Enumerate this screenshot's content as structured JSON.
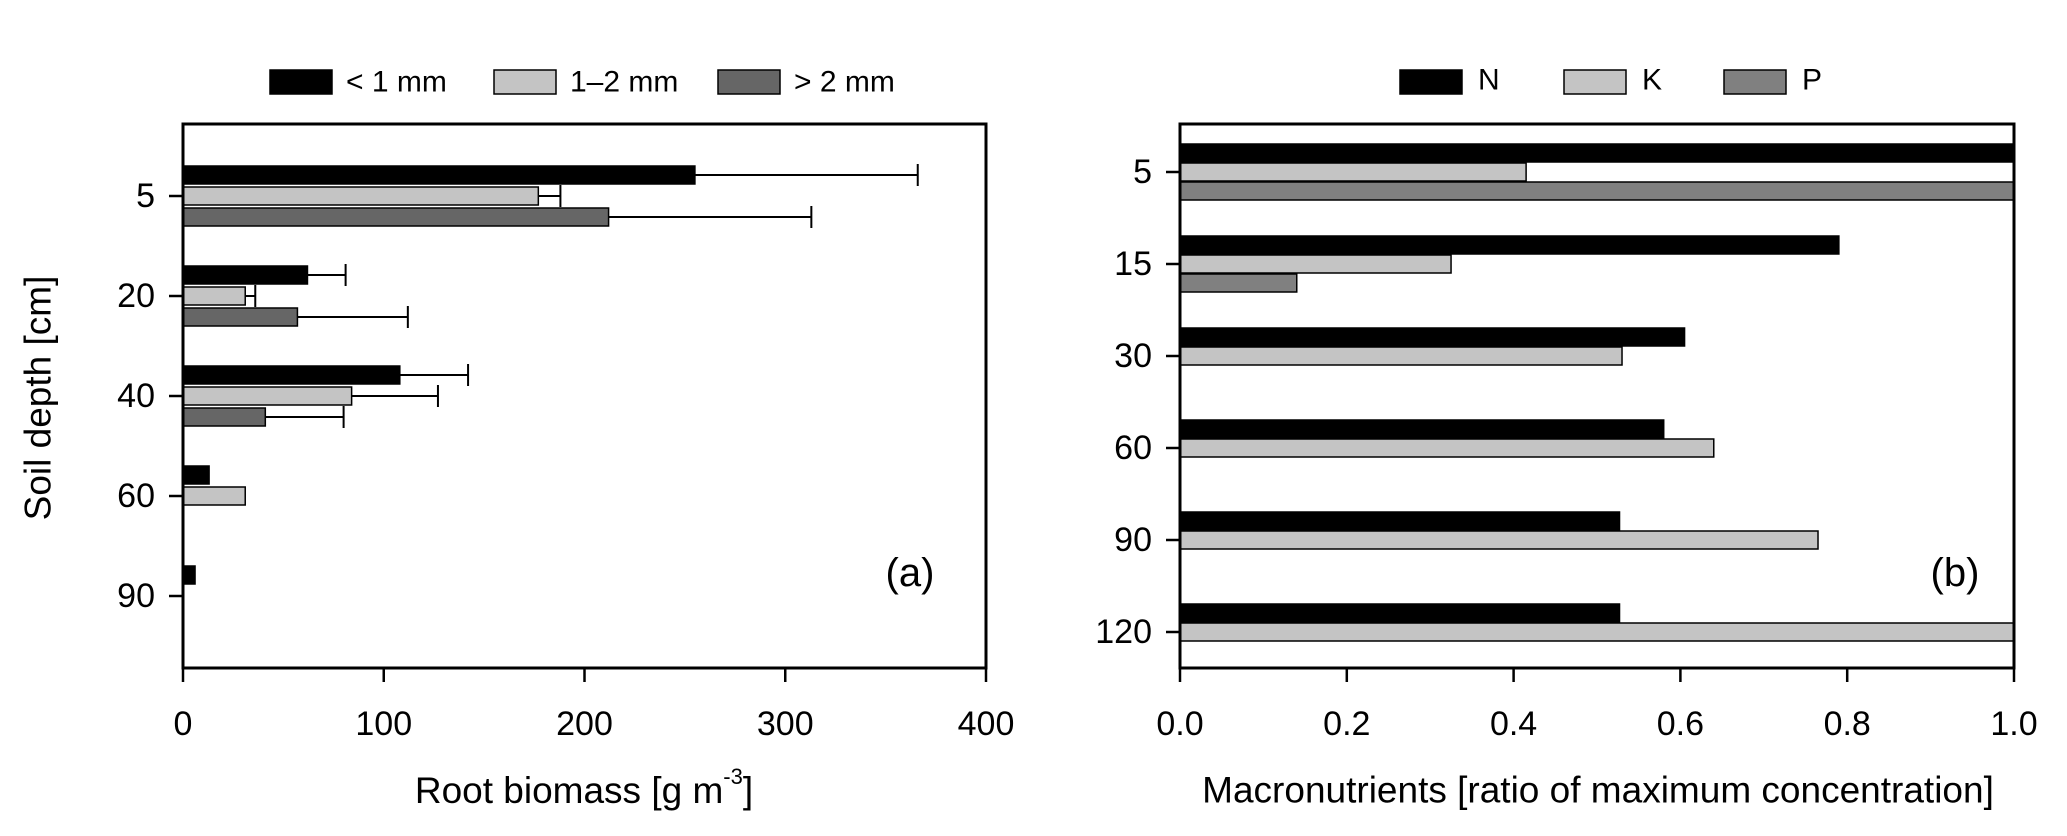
{
  "chart_data": [
    {
      "type": "bar",
      "orientation": "horizontal",
      "panel_label": "(a)",
      "categories": [
        "5",
        "20",
        "40",
        "60",
        "90"
      ],
      "ylabel": "Soil depth [cm]",
      "xlabel_main": "Root biomass [g m",
      "xlabel_sup": "-3",
      "xlabel_tail": "]",
      "xlim": [
        0,
        400
      ],
      "xticks": [
        "0",
        "100",
        "200",
        "300",
        "400"
      ],
      "tick_values": [
        0,
        100,
        200,
        300,
        400
      ],
      "legend_position": "top",
      "series": [
        {
          "name": "< 1 mm",
          "color": "#000000",
          "values": [
            255,
            62,
            108,
            13,
            6
          ],
          "errors": [
            111,
            19,
            34,
            null,
            null
          ]
        },
        {
          "name": "1–2 mm",
          "color": "#c4c4c4",
          "values": [
            177,
            31,
            84,
            31,
            null
          ],
          "errors": [
            11,
            5,
            43,
            null,
            null
          ]
        },
        {
          "name": "> 2 mm",
          "color": "#666666",
          "values": [
            212,
            57,
            41,
            null,
            null
          ],
          "errors": [
            101,
            55,
            39,
            null,
            null
          ]
        }
      ]
    },
    {
      "type": "bar",
      "orientation": "horizontal",
      "panel_label": "(b)",
      "categories": [
        "5",
        "15",
        "30",
        "60",
        "90",
        "120"
      ],
      "xlabel": "Macronutrients [ratio of maximum concentration]",
      "xlim": [
        0,
        1
      ],
      "xticks": [
        "0.0",
        "0.2",
        "0.4",
        "0.6",
        "0.8",
        "1.0"
      ],
      "tick_values": [
        0,
        0.2,
        0.4,
        0.6,
        0.8,
        1.0
      ],
      "legend_position": "top",
      "series": [
        {
          "name": "N",
          "color": "#000000",
          "values": [
            1.0,
            0.79,
            0.605,
            0.58,
            0.527,
            0.527
          ]
        },
        {
          "name": "K",
          "color": "#c4c4c4",
          "values": [
            0.415,
            0.325,
            0.53,
            0.64,
            0.765,
            1.0
          ]
        },
        {
          "name": "P",
          "color": "#808080",
          "values": [
            1.0,
            0.14,
            null,
            null,
            null,
            null
          ]
        }
      ]
    }
  ]
}
